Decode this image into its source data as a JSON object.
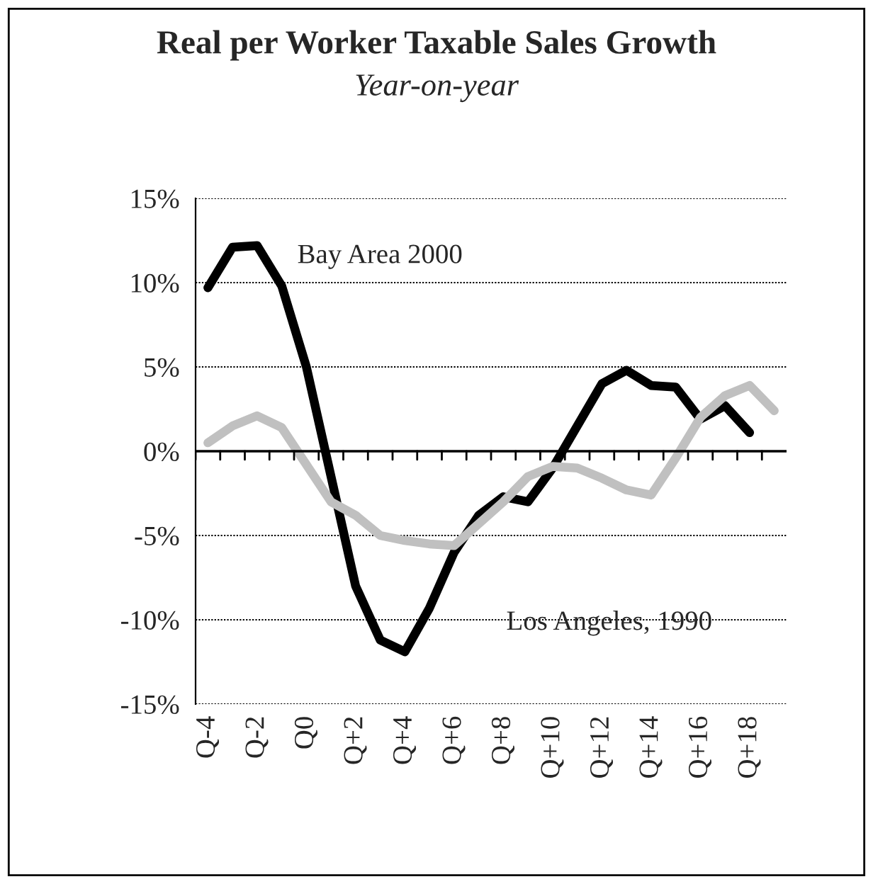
{
  "chart_data": {
    "type": "line",
    "title": "Real per Worker Taxable Sales Growth",
    "subtitle": "Year-on-year",
    "categories": [
      "Q-4",
      null,
      "Q-2",
      null,
      "Q0",
      null,
      "Q+2",
      null,
      "Q+4",
      null,
      "Q+6",
      null,
      "Q+8",
      null,
      "Q+10",
      null,
      "Q+12",
      null,
      "Q+14",
      null,
      "Q+16",
      null,
      "Q+18",
      null
    ],
    "series": [
      {
        "color": "#000000",
        "values": [
          9.7,
          12.1,
          12.2,
          9.8,
          5,
          -1.5,
          -8,
          -11.2,
          -11.9,
          -9.3,
          -6,
          -3.8,
          -2.7,
          -3,
          -1,
          1.5,
          4,
          4.8,
          3.9,
          3.8,
          1.9,
          2.7,
          1.1,
          null
        ]
      },
      {
        "color": "#c0c0c0",
        "values": [
          0.5,
          1.5,
          2.1,
          1.4,
          -0.8,
          -3,
          -3.8,
          -5,
          -5.3,
          -5.5,
          -5.6,
          -4.3,
          -3,
          -1.5,
          -0.9,
          -1,
          -1.6,
          -2.3,
          -2.6,
          -0.4,
          2,
          3.3,
          3.9,
          2.4
        ]
      }
    ],
    "annotations": [
      "Bay Area 2000",
      "Los Angeles, 1990"
    ],
    "ylim": [
      -15,
      15
    ],
    "yticks": [
      {
        "value": -15,
        "label": "-15%"
      },
      {
        "value": -10,
        "label": "-10%"
      },
      {
        "value": -5,
        "label": "-5%"
      },
      {
        "value": 0,
        "label": "0%"
      },
      {
        "value": 5,
        "label": "5%"
      },
      {
        "value": 10,
        "label": "10%"
      },
      {
        "value": 15,
        "label": "15%"
      }
    ],
    "grid": "y",
    "legend": false,
    "marker": "none",
    "line_style": "solid"
  }
}
